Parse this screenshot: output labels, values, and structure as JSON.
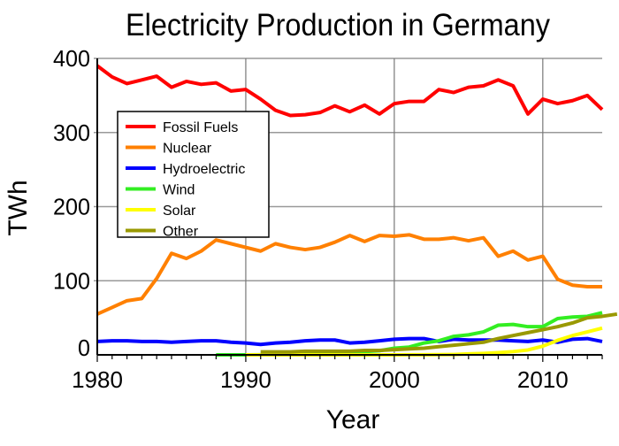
{
  "chart_data": {
    "type": "line",
    "title": "Electricity Production in Germany",
    "xlabel": "Year",
    "ylabel": "TWh",
    "xlim": [
      1980,
      2014
    ],
    "ylim": [
      0,
      400
    ],
    "xticks": [
      "1980",
      "1990",
      "2000",
      "2010"
    ],
    "yticks": [
      "0",
      "100",
      "200",
      "300",
      "400"
    ],
    "grid": true,
    "legend_position": "upper-left",
    "series": [
      {
        "name": "Fossil Fuels",
        "color": "#ff0000",
        "x_start": 1980,
        "values": [
          390,
          375,
          366,
          371,
          376,
          361,
          369,
          365,
          367,
          356,
          358,
          345,
          330,
          323,
          324,
          327,
          336,
          328,
          337,
          325,
          339,
          342,
          342,
          358,
          354,
          361,
          363,
          371,
          363,
          325,
          345,
          339,
          343,
          350,
          331
        ]
      },
      {
        "name": "Nuclear",
        "color": "#ff8000",
        "x_start": 1980,
        "values": [
          55,
          64,
          73,
          76,
          103,
          137,
          130,
          140,
          155,
          150,
          145,
          140,
          150,
          145,
          142,
          145,
          152,
          161,
          153,
          161,
          160,
          162,
          156,
          156,
          158,
          154,
          158,
          133,
          140,
          128,
          133,
          102,
          94,
          92,
          92
        ]
      },
      {
        "name": "Hydroelectric",
        "color": "#0000ff",
        "x_start": 1980,
        "values": [
          18,
          19,
          19,
          18,
          18,
          17,
          18,
          19,
          19,
          17,
          16,
          14,
          16,
          17,
          19,
          20,
          20,
          16,
          17,
          19,
          21,
          22,
          22,
          18,
          21,
          20,
          20,
          20,
          19,
          18,
          20,
          17,
          21,
          22,
          18
        ]
      },
      {
        "name": "Wind",
        "color": "#33ee22",
        "x_start": 1988,
        "values": [
          0,
          0,
          0,
          0.2,
          0.3,
          0.6,
          0.9,
          1.5,
          2,
          3,
          4.5,
          5.5,
          9,
          10.5,
          16,
          19,
          25,
          27,
          31,
          40,
          41,
          38,
          38,
          49,
          51,
          52,
          57
        ]
      },
      {
        "name": "Solar",
        "color": "#ffff00",
        "x_start": 1990,
        "values": [
          0,
          0,
          0,
          0,
          0,
          0,
          0,
          0,
          0,
          0,
          0,
          0.1,
          0.2,
          0.3,
          0.5,
          1.3,
          2,
          3,
          4.4,
          6.6,
          11.7,
          19.6,
          26,
          31,
          36
        ]
      },
      {
        "name": "Other",
        "color": "#999900",
        "x_start": 1991,
        "values": [
          4,
          4,
          4,
          5,
          5,
          5,
          5,
          6,
          6,
          7,
          8,
          9,
          11,
          13,
          15,
          17,
          22,
          26,
          30,
          34,
          38,
          43,
          50,
          52,
          55
        ]
      }
    ]
  }
}
